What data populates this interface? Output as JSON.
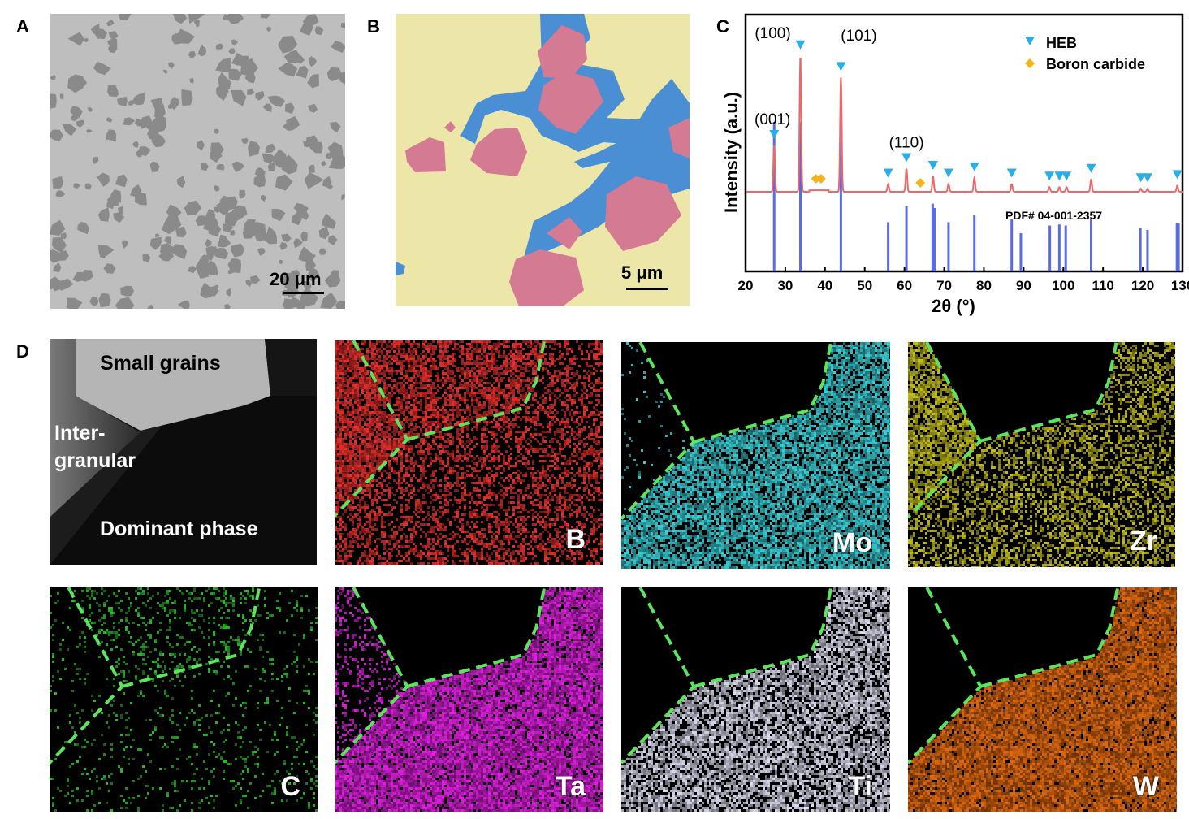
{
  "panels": {
    "a": {
      "letter": "A",
      "scale": "20 μm"
    },
    "b": {
      "letter": "B",
      "scale": "5 μm"
    },
    "c": {
      "letter": "C"
    },
    "d": {
      "letter": "D",
      "tem": {
        "small_grains": "Small grains",
        "inter1": "Inter-",
        "inter2": "granular",
        "dominant": "Dominant phase"
      },
      "maps": [
        {
          "label": "B",
          "color": "#e8302c"
        },
        {
          "label": "Mo",
          "color": "#3ad0d8"
        },
        {
          "label": "Zr",
          "color": "#c8c21c"
        },
        {
          "label": "C",
          "color": "#28c028"
        },
        {
          "label": "Ta",
          "color": "#e020e0"
        },
        {
          "label": "Ti",
          "color": "#dcdcf0"
        },
        {
          "label": "W",
          "color": "#e26a10"
        }
      ]
    }
  },
  "chart_data": {
    "type": "line",
    "xlabel": "2θ (°)",
    "ylabel": "Intensity (a.u.)",
    "xlim": [
      20,
      130
    ],
    "xticks": [
      20,
      30,
      40,
      50,
      60,
      70,
      80,
      90,
      100,
      110,
      120,
      130
    ],
    "legend": {
      "position": "top-right",
      "entries": [
        "HEB",
        "Boron carbide"
      ]
    },
    "colors": {
      "pattern": "#e8696a",
      "reference": "#5b6be0",
      "heb": "#29aee8",
      "boron_carbide": "#f2b417"
    },
    "reference_label": "PDF# 04-001-2357",
    "peaks_measured": [
      {
        "x": 27.2,
        "h": 0.3
      },
      {
        "x": 33.8,
        "h": 0.88
      },
      {
        "x": 44.0,
        "h": 0.74
      },
      {
        "x": 55.9,
        "h": 0.05
      },
      {
        "x": 60.5,
        "h": 0.15
      },
      {
        "x": 67.2,
        "h": 0.1
      },
      {
        "x": 71.1,
        "h": 0.05
      },
      {
        "x": 77.6,
        "h": 0.09
      },
      {
        "x": 87.0,
        "h": 0.05
      },
      {
        "x": 96.5,
        "h": 0.03
      },
      {
        "x": 99.0,
        "h": 0.03
      },
      {
        "x": 100.8,
        "h": 0.03
      },
      {
        "x": 107.0,
        "h": 0.08
      },
      {
        "x": 119.5,
        "h": 0.02
      },
      {
        "x": 121.2,
        "h": 0.02
      },
      {
        "x": 128.7,
        "h": 0.04
      }
    ],
    "reference_lines": [
      {
        "x": 27.2,
        "h": 1.0
      },
      {
        "x": 33.8,
        "h": 1.0
      },
      {
        "x": 44.0,
        "h": 1.0
      },
      {
        "x": 55.9,
        "h": 0.45
      },
      {
        "x": 60.5,
        "h": 0.6
      },
      {
        "x": 67.1,
        "h": 0.62
      },
      {
        "x": 67.6,
        "h": 0.58
      },
      {
        "x": 71.1,
        "h": 0.45
      },
      {
        "x": 77.6,
        "h": 0.52
      },
      {
        "x": 87.0,
        "h": 0.48
      },
      {
        "x": 89.3,
        "h": 0.35
      },
      {
        "x": 96.6,
        "h": 0.42
      },
      {
        "x": 99.0,
        "h": 0.43
      },
      {
        "x": 100.6,
        "h": 0.42
      },
      {
        "x": 107.0,
        "h": 0.48
      },
      {
        "x": 119.4,
        "h": 0.4
      },
      {
        "x": 121.2,
        "h": 0.38
      },
      {
        "x": 128.6,
        "h": 0.44
      },
      {
        "x": 129.0,
        "h": 0.44
      }
    ],
    "heb_markers": [
      27.2,
      33.8,
      44.0,
      55.9,
      60.5,
      67.2,
      71.1,
      77.6,
      87.0,
      96.5,
      99.0,
      100.8,
      107.0,
      119.5,
      121.2,
      128.7
    ],
    "boron_carbide_markers": [
      37.7,
      39.0,
      64.0
    ],
    "peak_labels": [
      {
        "x": 27.2,
        "text": "(001)"
      },
      {
        "x": 33.8,
        "text": "(100)"
      },
      {
        "x": 44.0,
        "text": "(101)"
      },
      {
        "x": 60.5,
        "text": "(110)"
      }
    ]
  }
}
